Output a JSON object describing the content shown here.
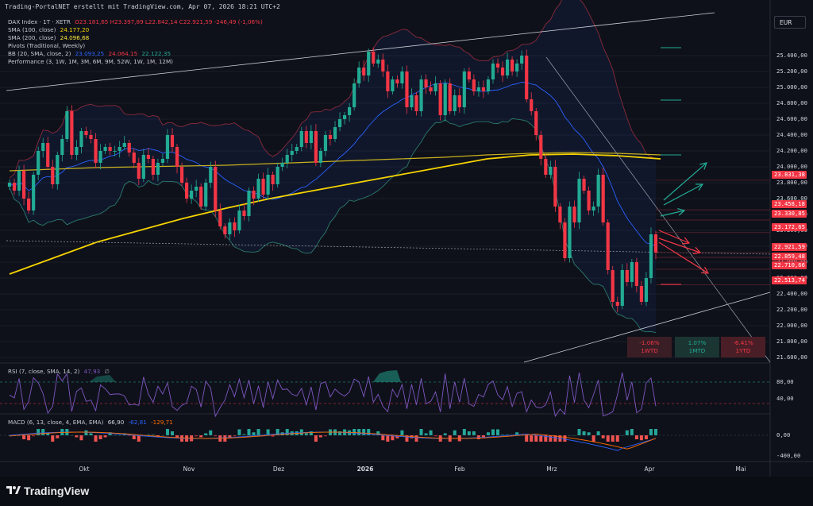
{
  "watermark": "Trading-PortalNET erstellt mit TradingView.com, Apr 07, 2026 18:21 UTC+2",
  "currency": "EUR",
  "legend": {
    "symbol_line": "DAX Index · 1T · XETR",
    "ohlc": "O23.181,65 H23.397,89 L22.842,14 C22.921,59 -246,49 (-1,06%)",
    "sma100_label": "SMA (100, close)",
    "sma100_value": "24.177,20",
    "sma200_label": "SMA (200, close)",
    "sma200_value": "24.096,68",
    "pivots_label": "Pivots (Traditional, Weekly)",
    "bb_label": "BB (20, SMA, close, 2)",
    "bb_basis": "23.093,25",
    "bb_upper": "24.064,15",
    "bb_lower": "22.122,35",
    "performance_label": "Performance (3, 1W, 1M, 3M, 6M, 9M, 52W, 1W, 1M, 12M)"
  },
  "rsi_legend": {
    "label": "RSI (7, close, SMA, 14, 2)",
    "value": "47,93",
    "value2": "∅"
  },
  "macd_legend": {
    "label": "MACD (6, 13, close, 4, EMA, EMA)",
    "v1": "66,90",
    "v2": "-62,81",
    "v3": "-129,71"
  },
  "price_axis": [
    "25.400,00",
    "25.200,00",
    "25.000,00",
    "24.800,00",
    "24.600,00",
    "24.400,00",
    "24.200,00",
    "24.000,00",
    "23.800,00",
    "23.600,00",
    "23.400,00",
    "23.200,00",
    "23.000,00",
    "22.800,00",
    "22.600,00",
    "22.400,00",
    "22.200,00",
    "22.000,00",
    "21.800,00",
    "21.600,00"
  ],
  "price_tags": [
    {
      "text": "23.831,38",
      "color": "#f23645"
    },
    {
      "text": "23.458,18",
      "color": "#f23645"
    },
    {
      "text": "23.330,85",
      "color": "#f23645"
    },
    {
      "text": "23.172,65",
      "color": "#f23645"
    },
    {
      "text": "22.921,59",
      "color": "#f23645"
    },
    {
      "text": "22.859,48",
      "color": "#f23645"
    },
    {
      "text": "22.710,66",
      "color": "#f23645"
    },
    {
      "text": "22.513,74",
      "color": "#f23645"
    }
  ],
  "rsi_axis": [
    "80,00",
    "40,00"
  ],
  "macd_axis": [
    "0,00",
    "-400,00"
  ],
  "time_axis": [
    "Okt",
    "Nov",
    "Dez",
    "2026",
    "Feb",
    "Mrz",
    "Apr",
    "Mai"
  ],
  "performance": [
    {
      "pct": "-1.06%",
      "period": "1WTD",
      "color": "#f23645",
      "bg": "#3a1e26"
    },
    {
      "pct": "1.07%",
      "period": "1MTD",
      "color": "#22ab94",
      "bg": "#1b3532"
    },
    {
      "pct": "-6.41%",
      "period": "1YTD",
      "color": "#f23645",
      "bg": "#4a1e26"
    }
  ],
  "brand": "TradingView",
  "colors": {
    "up": "#22ab94",
    "down": "#f23645",
    "sma100": "#f5d300",
    "sma200": "#ffeb3b",
    "bb": "#2962ff",
    "rsi": "#7e57c2",
    "macd": "#2962ff",
    "signal": "#ff6d00"
  },
  "chart_data": {
    "type": "candlestick",
    "title": "",
    "xlabel": "",
    "ylabel": "",
    "ylim": [
      21600,
      25500
    ],
    "x_ticks": [
      "Okt",
      "Nov",
      "Dez",
      "2026",
      "Feb",
      "Mrz",
      "Apr",
      "Mai"
    ],
    "closes": [
      23800,
      23700,
      23950,
      23600,
      23450,
      23900,
      24200,
      24300,
      24000,
      23780,
      24150,
      24350,
      24700,
      24150,
      24250,
      24450,
      24400,
      24350,
      24050,
      24200,
      24250,
      24200,
      24200,
      24250,
      24300,
      24180,
      24050,
      23850,
      24150,
      24100,
      23900,
      24050,
      24100,
      24400,
      24250,
      24000,
      23800,
      23600,
      23700,
      23750,
      23500,
      23800,
      24000,
      23450,
      23250,
      23150,
      23300,
      23200,
      23450,
      23380,
      23700,
      23600,
      23850,
      23650,
      23900,
      23780,
      24000,
      24050,
      24150,
      24200,
      24250,
      24450,
      24300,
      24450,
      24050,
      24200,
      24400,
      24350,
      24500,
      24600,
      24650,
      24750,
      25050,
      25250,
      25150,
      25450,
      25300,
      25350,
      25200,
      24950,
      25100,
      25050,
      25200,
      24750,
      24900,
      24700,
      25100,
      25000,
      24950,
      25050,
      24650,
      25050,
      24700,
      24900,
      24750,
      25200,
      25100,
      24950,
      25000,
      24950,
      25100,
      25300,
      25250,
      25150,
      25350,
      25200,
      25300,
      25400,
      24850,
      24700,
      24400,
      24100,
      23900,
      24000,
      23500,
      23300,
      22850,
      23500,
      23300,
      23850,
      23700,
      23450,
      23500,
      23900,
      23300,
      22700,
      22300,
      22250,
      22700,
      22550,
      22800,
      22500,
      22300,
      22600,
      23150,
      22920
    ],
    "sma100_approx": [
      23950,
      23970,
      23990,
      24000,
      24010,
      24020,
      24040,
      24060,
      24080,
      24100,
      24120,
      24150,
      24170,
      24180,
      24170,
      24150
    ],
    "sma200_approx": [
      22650,
      22850,
      23050,
      23200,
      23350,
      23480,
      23600,
      23700,
      23800,
      23900,
      24000,
      24100,
      24150,
      24160,
      24140,
      24100
    ],
    "rsi_last": 47.93,
    "macd_last": {
      "macd": 66.9,
      "signal": -62.81,
      "hist": -129.71
    },
    "price_levels": [
      23831.38,
      23458.18,
      23330.85,
      23172.65,
      22921.59,
      22859.48,
      22710.66,
      22513.74
    ]
  }
}
